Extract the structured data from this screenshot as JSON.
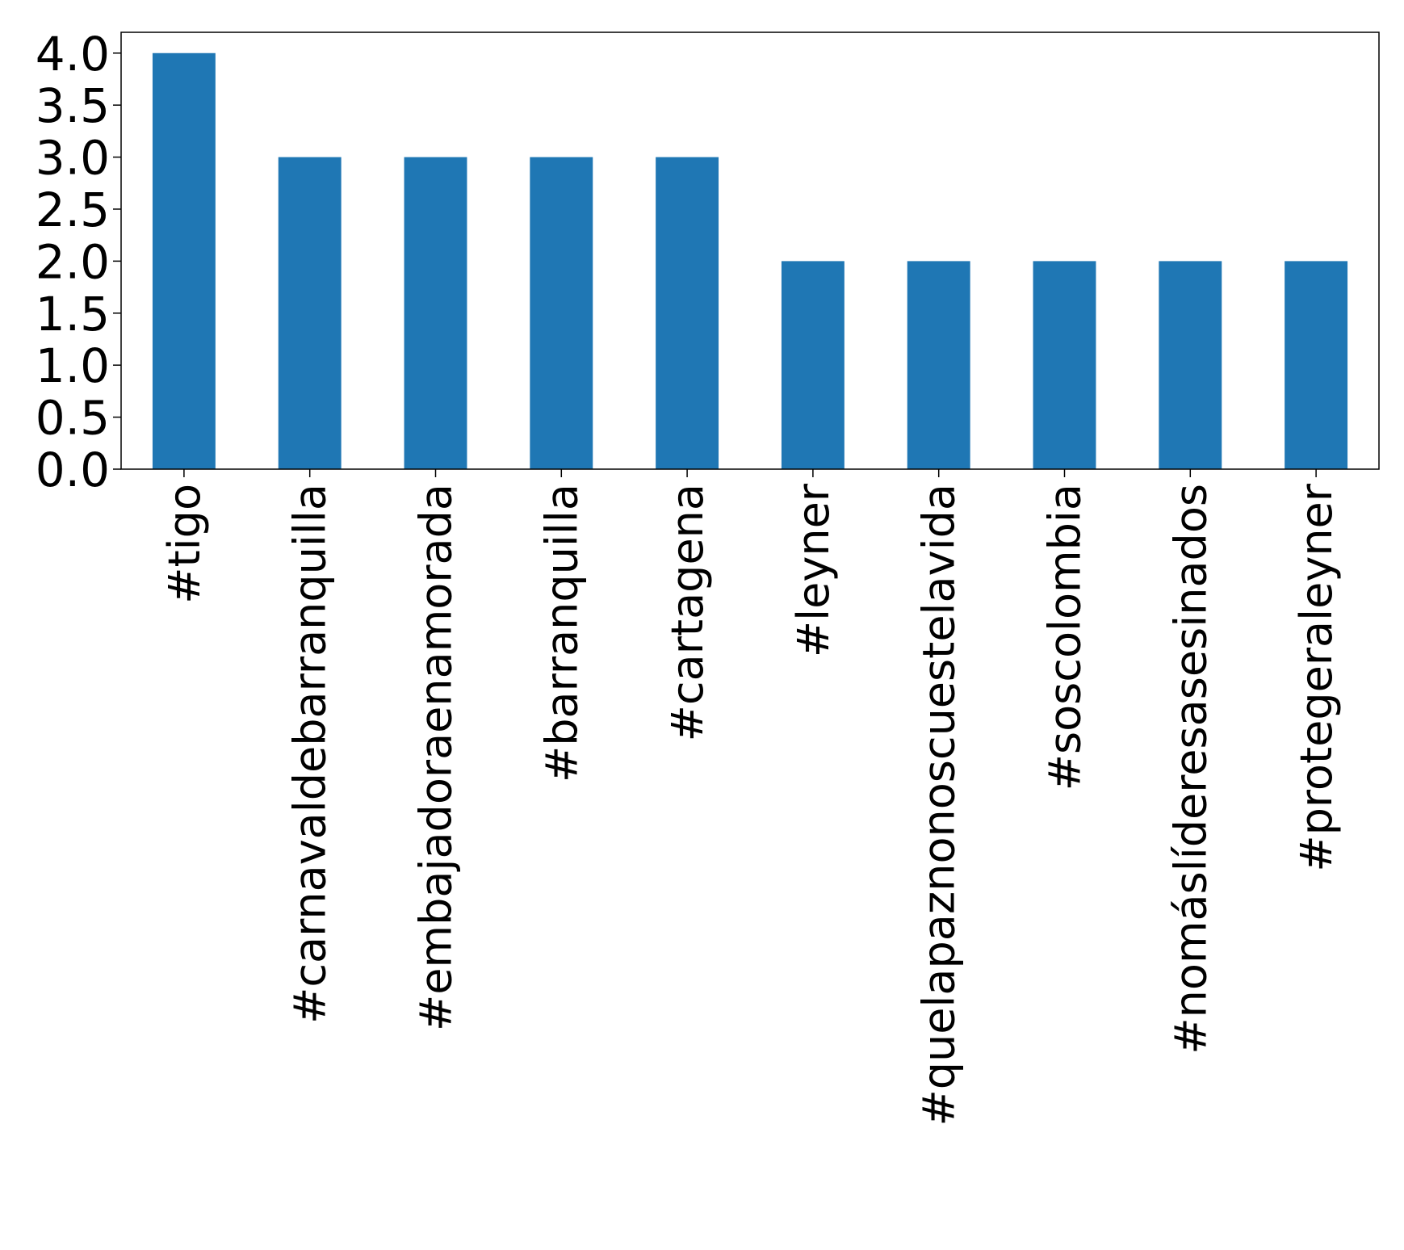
{
  "chart_data": {
    "type": "bar",
    "title": "",
    "xlabel": "",
    "ylabel": "",
    "categories": [
      "#tigo",
      "#carnavaldebarranquilla",
      "#embajadoraenamorada",
      "#barranquilla",
      "#cartagena",
      "#leyner",
      "#quelapaznonoscuestelavida",
      "#soscolombia",
      "#nomáslíderesasesinados",
      "#protegeraleyner"
    ],
    "values": [
      4,
      3,
      3,
      3,
      3,
      2,
      2,
      2,
      2,
      2
    ],
    "ylim": [
      0,
      4.2
    ],
    "yticks": [
      "0.0",
      "0.5",
      "1.0",
      "1.5",
      "2.0",
      "2.5",
      "3.0",
      "3.5",
      "4.0"
    ],
    "bar_color": "#1f77b4",
    "grid": false,
    "legend": null,
    "x_tick_rotation": "vertical"
  }
}
